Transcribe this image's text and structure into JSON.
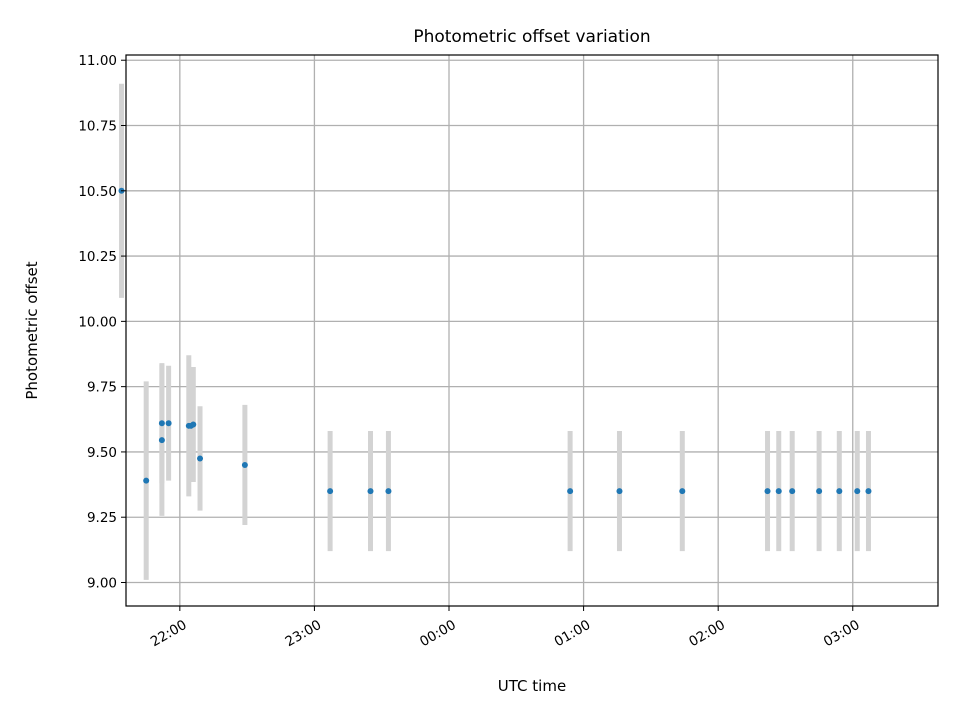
{
  "chart_data": {
    "type": "scatter",
    "title": "Photometric offset variation",
    "xlabel": "UTC time",
    "ylabel": "Photometric offset",
    "x_axis": {
      "type": "time",
      "range": [
        "21:36",
        "03:38"
      ],
      "ticks": [
        "22:00",
        "23:00",
        "00:00",
        "01:00",
        "02:00",
        "03:00"
      ]
    },
    "y_axis": {
      "range": [
        8.91,
        11.02
      ],
      "ticks": [
        "9.00",
        "9.25",
        "9.50",
        "9.75",
        "10.00",
        "10.25",
        "10.50",
        "10.75",
        "11.00"
      ]
    },
    "grid": true,
    "marker_color": "#1f77b4",
    "errorbar_color": "#d3d3d3",
    "points": [
      {
        "x": "21:34",
        "y": 10.5,
        "err": 0.41
      },
      {
        "x": "21:45",
        "y": 9.39,
        "err": 0.38
      },
      {
        "x": "21:52",
        "y": 9.61,
        "err": 0.23
      },
      {
        "x": "21:52",
        "y": 9.545,
        "err": 0.29
      },
      {
        "x": "21:55",
        "y": 9.61,
        "err": 0.22
      },
      {
        "x": "22:04",
        "y": 9.6,
        "err": 0.27
      },
      {
        "x": "22:05",
        "y": 9.6,
        "err": 0.2
      },
      {
        "x": "22:06",
        "y": 9.605,
        "err": 0.22
      },
      {
        "x": "22:09",
        "y": 9.475,
        "err": 0.2
      },
      {
        "x": "22:29",
        "y": 9.45,
        "err": 0.23
      },
      {
        "x": "23:07",
        "y": 9.35,
        "err": 0.23
      },
      {
        "x": "23:25",
        "y": 9.35,
        "err": 0.23
      },
      {
        "x": "23:33",
        "y": 9.35,
        "err": 0.23
      },
      {
        "x": "00:54",
        "y": 9.35,
        "err": 0.23
      },
      {
        "x": "01:16",
        "y": 9.35,
        "err": 0.23
      },
      {
        "x": "01:44",
        "y": 9.35,
        "err": 0.23
      },
      {
        "x": "02:22",
        "y": 9.35,
        "err": 0.23
      },
      {
        "x": "02:27",
        "y": 9.35,
        "err": 0.23
      },
      {
        "x": "02:33",
        "y": 9.35,
        "err": 0.23
      },
      {
        "x": "02:45",
        "y": 9.35,
        "err": 0.23
      },
      {
        "x": "02:54",
        "y": 9.35,
        "err": 0.23
      },
      {
        "x": "03:02",
        "y": 9.35,
        "err": 0.23
      },
      {
        "x": "03:07",
        "y": 9.35,
        "err": 0.23
      }
    ]
  }
}
